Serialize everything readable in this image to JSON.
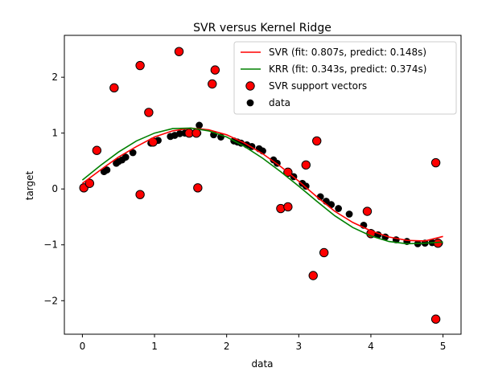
{
  "chart_data": {
    "type": "scatter",
    "title": "SVR versus Kernel Ridge",
    "xlabel": "data",
    "ylabel": "target",
    "xlim": [
      -0.25,
      5.25
    ],
    "ylim": [
      -2.6,
      2.75
    ],
    "xticks": [
      0,
      1,
      2,
      3,
      4,
      5
    ],
    "xtick_labels": [
      "0",
      "1",
      "2",
      "3",
      "4",
      "5"
    ],
    "yticks": [
      -2,
      -1,
      0,
      1,
      2
    ],
    "ytick_labels": [
      "−2",
      "−1",
      "0",
      "1",
      "2"
    ],
    "grid": false,
    "legend_position": "upper right",
    "legend": [
      {
        "label": "SVR (fit: 0.807s, predict: 0.148s)",
        "kind": "line",
        "color": "#ff0000"
      },
      {
        "label": "KRR (fit: 0.343s, predict: 0.374s)",
        "kind": "line",
        "color": "#008000"
      },
      {
        "label": "SVR support vectors",
        "kind": "marker",
        "color": "#ff0000"
      },
      {
        "label": "data",
        "kind": "marker",
        "color": "#000000"
      }
    ],
    "series": [
      {
        "name": "SVR (fit: 0.807s, predict: 0.148s)",
        "type": "line",
        "color": "#ff0000",
        "x": [
          0,
          0.25,
          0.5,
          0.75,
          1.0,
          1.25,
          1.5,
          1.75,
          2.0,
          2.25,
          2.5,
          2.75,
          3.0,
          3.25,
          3.5,
          3.75,
          4.0,
          4.25,
          4.5,
          4.75,
          5.0
        ],
        "y": [
          0.1,
          0.34,
          0.57,
          0.76,
          0.93,
          1.04,
          1.09,
          1.06,
          0.97,
          0.82,
          0.63,
          0.4,
          0.14,
          -0.14,
          -0.4,
          -0.6,
          -0.75,
          -0.86,
          -0.92,
          -0.93,
          -0.85
        ]
      },
      {
        "name": "KRR (fit: 0.343s, predict: 0.374s)",
        "type": "line",
        "color": "#008000",
        "x": [
          0,
          0.25,
          0.5,
          0.75,
          1.0,
          1.25,
          1.5,
          1.75,
          2.0,
          2.25,
          2.5,
          2.75,
          3.0,
          3.25,
          3.5,
          3.75,
          4.0,
          4.25,
          4.5,
          4.75,
          5.0
        ],
        "y": [
          0.16,
          0.42,
          0.66,
          0.86,
          1.0,
          1.08,
          1.09,
          1.04,
          0.93,
          0.76,
          0.55,
          0.31,
          0.05,
          -0.22,
          -0.48,
          -0.69,
          -0.84,
          -0.94,
          -0.98,
          -0.97,
          -0.95
        ]
      },
      {
        "name": "SVR support vectors",
        "type": "scatter",
        "color": "#ff0000",
        "x": [
          0.02,
          0.1,
          0.2,
          0.44,
          0.8,
          0.8,
          0.92,
          0.98,
          1.34,
          1.48,
          1.58,
          1.6,
          1.8,
          1.84,
          2.75,
          2.85,
          2.85,
          3.1,
          3.2,
          3.25,
          3.35,
          3.95,
          4.0,
          4.9,
          4.9,
          4.93
        ],
        "y": [
          0.02,
          0.1,
          0.69,
          1.81,
          2.21,
          -0.1,
          1.37,
          0.84,
          2.46,
          1.0,
          1.0,
          0.02,
          1.88,
          2.13,
          -0.35,
          -0.32,
          0.3,
          0.43,
          -1.55,
          0.86,
          -1.14,
          -0.4,
          -0.8,
          -2.33,
          0.47,
          -0.97
        ]
      },
      {
        "name": "data",
        "type": "scatter",
        "color": "#000000",
        "x": [
          0.02,
          0.1,
          0.3,
          0.34,
          0.47,
          0.5,
          0.55,
          0.6,
          0.7,
          0.95,
          1.05,
          1.22,
          1.28,
          1.35,
          1.42,
          1.5,
          1.6,
          1.62,
          1.82,
          1.92,
          2.1,
          2.15,
          2.2,
          2.28,
          2.35,
          2.45,
          2.5,
          2.65,
          2.7,
          2.85,
          2.93,
          3.05,
          3.1,
          3.3,
          3.38,
          3.45,
          3.55,
          3.7,
          3.9,
          4.0,
          4.1,
          4.2,
          4.35,
          4.5,
          4.65,
          4.75,
          4.85,
          4.95
        ],
        "y": [
          0.02,
          0.1,
          0.31,
          0.34,
          0.46,
          0.49,
          0.52,
          0.57,
          0.65,
          0.82,
          0.87,
          0.94,
          0.96,
          0.99,
          1.0,
          1.0,
          1.0,
          1.14,
          0.97,
          0.93,
          0.86,
          0.84,
          0.82,
          0.79,
          0.76,
          0.72,
          0.68,
          0.52,
          0.46,
          0.28,
          0.22,
          0.1,
          0.05,
          -0.14,
          -0.22,
          -0.28,
          -0.35,
          -0.45,
          -0.65,
          -0.78,
          -0.82,
          -0.86,
          -0.91,
          -0.94,
          -0.98,
          -0.97,
          -0.96,
          -0.97
        ]
      }
    ]
  }
}
